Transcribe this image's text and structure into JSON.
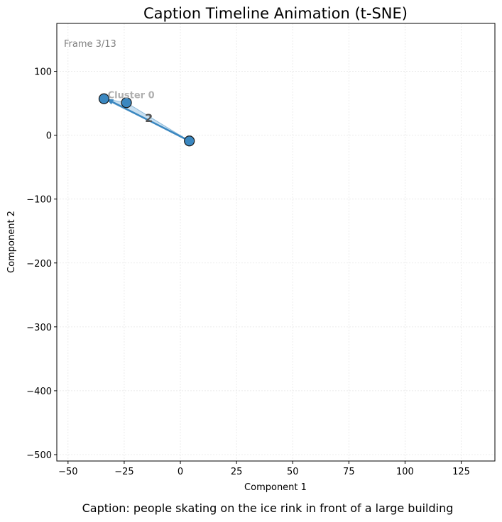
{
  "chart_data": {
    "type": "scatter",
    "title": "Caption Timeline Animation (t-SNE)",
    "xlabel": "Component 1",
    "ylabel": "Component 2",
    "xlim": [
      -55,
      140
    ],
    "ylim": [
      -510,
      175
    ],
    "xticks": [
      -50,
      -25,
      0,
      25,
      50,
      75,
      100,
      125
    ],
    "yticks": [
      -500,
      -400,
      -300,
      -200,
      -100,
      0,
      100
    ],
    "xtick_labels": [
      "−50",
      "−25",
      "0",
      "25",
      "50",
      "75",
      "100",
      "125"
    ],
    "ytick_labels": [
      "−500",
      "−400",
      "−300",
      "−200",
      "−100",
      "0",
      "100"
    ],
    "grid": true,
    "frame_label": "Frame 3/13",
    "caption": "Caption: people skating on the ice rink in front of a large building",
    "points": [
      {
        "x": 4,
        "y": -9
      },
      {
        "x": -24,
        "y": 51
      },
      {
        "x": -34,
        "y": 57
      }
    ],
    "arrow": {
      "from": {
        "x": 4,
        "y": -9
      },
      "to": {
        "x": -33,
        "y": 57
      }
    },
    "triangle": [
      {
        "x": 4,
        "y": -9
      },
      {
        "x": -24,
        "y": 51
      },
      {
        "x": -34,
        "y": 57
      }
    ],
    "cluster_label": {
      "text": "Cluster 0",
      "x": -33,
      "y": 58
    },
    "step_label": {
      "text": "2",
      "x": -14,
      "y": 26
    },
    "colors": {
      "point_fill": "#3a87c0",
      "point_edge": "#1a1a1a",
      "arrow": "#3a87c0",
      "triangle_fill": "#9ec6e3",
      "grid": "#e6e6e6"
    }
  }
}
